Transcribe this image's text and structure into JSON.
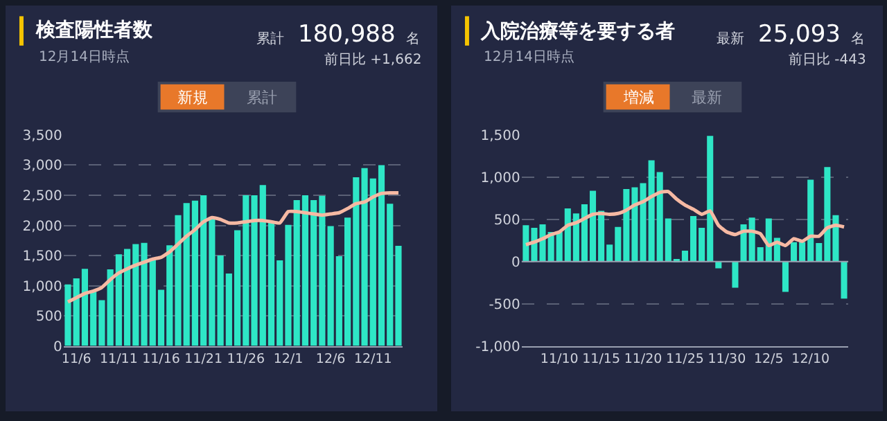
{
  "chart_data": [
    {
      "type": "bar",
      "title": "検査陽性者数",
      "subtitle": "12月14日時点",
      "annotations": [
        "累計",
        "180,988",
        "名",
        "前日比 +1,662",
        "新規",
        "累計"
      ],
      "categories": [
        null,
        "11/6",
        null,
        null,
        null,
        null,
        "11/11",
        null,
        null,
        null,
        null,
        "11/16",
        null,
        null,
        null,
        null,
        "11/21",
        null,
        null,
        null,
        null,
        "11/26",
        null,
        null,
        null,
        null,
        "12/1",
        null,
        null,
        null,
        null,
        "12/6",
        null,
        null,
        null,
        null,
        "12/11",
        null,
        null,
        null
      ],
      "series": [
        {
          "color": "#2ee6c6",
          "values": [
            1020,
            1120,
            1280,
            900,
            760,
            1270,
            1520,
            1610,
            1690,
            1710,
            1430,
            930,
            1670,
            2170,
            2370,
            2410,
            2500,
            2140,
            1500,
            1200,
            1920,
            2500,
            2500,
            2670,
            2060,
            1420,
            2010,
            2420,
            2500,
            2420,
            2490,
            1990,
            1490,
            2130,
            2800,
            2950,
            2780,
            3000,
            2360,
            1660
          ]
        },
        {
          "type": "line",
          "color": "#f6b9a3",
          "values": [
            730,
            800,
            870,
            910,
            970,
            1100,
            1210,
            1280,
            1340,
            1390,
            1440,
            1470,
            1560,
            1690,
            1820,
            1930,
            2060,
            2130,
            2100,
            2040,
            2040,
            2060,
            2080,
            2080,
            2060,
            2040,
            2230,
            2230,
            2210,
            2190,
            2170,
            2190,
            2210,
            2280,
            2360,
            2390,
            2470,
            2530,
            2540,
            2540
          ]
        }
      ],
      "ylim": [
        0,
        3500
      ],
      "yticks": [
        0,
        500,
        {
          "value": 1000,
          "label": "1,000"
        },
        {
          "value": 1500,
          "label": "1,500"
        },
        {
          "value": 2000,
          "label": "2,000"
        },
        {
          "value": 2500,
          "label": "2,500"
        },
        {
          "value": 3000,
          "label": "3,000"
        },
        {
          "value": 3500,
          "label": "3,500"
        }
      ],
      "grid": "y",
      "marker": "none"
    },
    {
      "type": "bar",
      "title": "入院治療等を要する者",
      "subtitle": "12月14日時点",
      "annotations": [
        "最新",
        "25,093",
        "名",
        "前日比 -443",
        "増減",
        "最新"
      ],
      "categories": [
        null,
        null,
        null,
        null,
        "11/10",
        null,
        null,
        null,
        null,
        "11/15",
        null,
        null,
        null,
        null,
        "11/20",
        null,
        null,
        null,
        null,
        "11/25",
        null,
        null,
        null,
        null,
        "11/30",
        null,
        null,
        null,
        null,
        "12/5",
        null,
        null,
        null,
        null,
        "12/10",
        null,
        null,
        null,
        null
      ],
      "series": [
        {
          "color": "#2ee6c6",
          "values": [
            430,
            400,
            440,
            350,
            350,
            630,
            570,
            680,
            840,
            600,
            200,
            410,
            860,
            880,
            930,
            1200,
            1060,
            510,
            30,
            130,
            540,
            400,
            1490,
            -80,
            0,
            -310,
            440,
            520,
            170,
            510,
            280,
            -360,
            230,
            230,
            970,
            220,
            1120,
            550,
            -440
          ]
        },
        {
          "type": "line",
          "color": "#f6b9a3",
          "values": [
            200,
            230,
            270,
            320,
            350,
            430,
            460,
            510,
            560,
            570,
            560,
            570,
            610,
            670,
            710,
            770,
            820,
            830,
            740,
            670,
            620,
            560,
            600,
            430,
            350,
            320,
            360,
            360,
            330,
            190,
            230,
            190,
            270,
            240,
            300,
            300,
            400,
            430,
            410
          ]
        }
      ],
      "ylim": [
        -1000,
        1500
      ],
      "yticks": [
        {
          "value": -1000,
          "label": "-1,000"
        },
        -500,
        0,
        500,
        {
          "value": 1000,
          "label": "1,000"
        },
        {
          "value": 1500,
          "label": "1,500"
        }
      ],
      "grid": "y",
      "marker": "none"
    }
  ]
}
